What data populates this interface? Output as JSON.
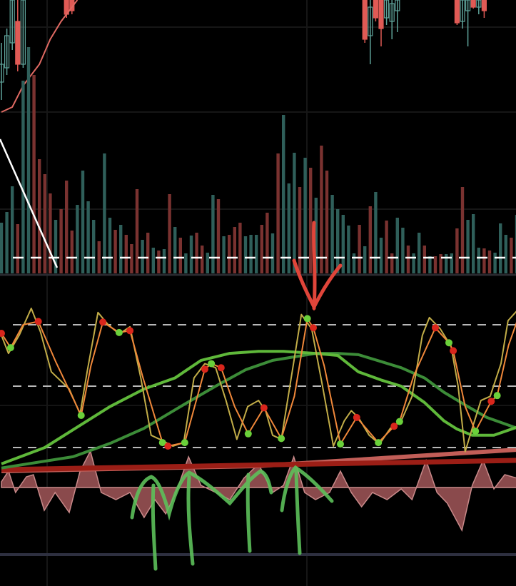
{
  "chart_data": [
    {
      "type": "candlestick",
      "pane": "price",
      "colors": {
        "up": "#5fa39a",
        "down": "#e05a55",
        "ma": "#e06a63"
      },
      "candles": [
        [
          0,
          85,
          110,
          140,
          60,
          "up"
        ],
        [
          1,
          105,
          150,
          160,
          95,
          "up"
        ],
        [
          2,
          140,
          200,
          200,
          130,
          "up"
        ],
        [
          3,
          170,
          110,
          200,
          100,
          "down"
        ],
        [
          4,
          110,
          200,
          200,
          105,
          "up"
        ],
        [
          12,
          200,
          180,
          200,
          175,
          "down"
        ],
        [
          13,
          200,
          185,
          200,
          180,
          "down"
        ],
        [
          67,
          200,
          145,
          200,
          140,
          "down"
        ],
        [
          68,
          150,
          190,
          200,
          110,
          "up"
        ],
        [
          69,
          200,
          175,
          200,
          170,
          "down"
        ],
        [
          70,
          200,
          160,
          200,
          135,
          "down"
        ],
        [
          71,
          175,
          200,
          200,
          165,
          "up"
        ],
        [
          72,
          170,
          195,
          200,
          145,
          "up"
        ],
        [
          73,
          185,
          200,
          200,
          155,
          "up"
        ],
        [
          84,
          200,
          168,
          200,
          165,
          "down"
        ],
        [
          85,
          170,
          200,
          200,
          160,
          "up"
        ],
        [
          86,
          185,
          200,
          200,
          135,
          "up"
        ],
        [
          87,
          200,
          190,
          200,
          188,
          "down"
        ],
        [
          88,
          190,
          200,
          200,
          180,
          "up"
        ],
        [
          89,
          200,
          185,
          200,
          175,
          "down"
        ]
      ],
      "ma": [
        [
          0,
          43
        ],
        [
          2,
          50
        ],
        [
          4,
          80
        ],
        [
          7,
          110
        ],
        [
          9,
          145
        ],
        [
          11,
          170
        ],
        [
          14,
          200
        ]
      ]
    },
    {
      "type": "bar",
      "pane": "volume",
      "colors": {
        "up": "#2f5f5a",
        "down": "#7a3230",
        "threshold": "#ffffff"
      },
      "values": [
        71,
        86,
        122,
        69,
        270,
        317,
        278,
        160,
        139,
        112,
        75,
        90,
        130,
        60,
        96,
        144,
        101,
        75,
        45,
        168,
        78,
        61,
        68,
        54,
        41,
        118,
        47,
        57,
        36,
        32,
        34,
        111,
        65,
        50,
        28,
        53,
        57,
        39,
        29,
        110,
        104,
        52,
        54,
        65,
        71,
        52,
        54,
        54,
        68,
        85,
        56,
        168,
        222,
        126,
        169,
        121,
        162,
        148,
        106,
        179,
        144,
        110,
        90,
        82,
        67,
        28,
        68,
        38,
        94,
        114,
        50,
        74,
        28,
        78,
        64,
        39,
        28,
        57,
        39,
        24,
        24,
        27,
        27,
        28,
        63,
        121,
        75,
        83,
        36,
        35,
        32,
        29,
        70,
        54,
        50,
        82
      ],
      "direction": [
        "up",
        "up",
        "up",
        "down",
        "up",
        "up",
        "down",
        "down",
        "down",
        "down",
        "up",
        "down",
        "down",
        "down",
        "up",
        "up",
        "up",
        "up",
        "down",
        "up",
        "up",
        "down",
        "up",
        "down",
        "down",
        "down",
        "up",
        "down",
        "up",
        "down",
        "up",
        "down",
        "up",
        "down",
        "up",
        "up",
        "down",
        "down",
        "up",
        "up",
        "down",
        "up",
        "down",
        "down",
        "down",
        "up",
        "up",
        "up",
        "down",
        "down",
        "up",
        "down",
        "up",
        "up",
        "up",
        "down",
        "up",
        "down",
        "up",
        "down",
        "down",
        "up",
        "up",
        "up",
        "up",
        "up",
        "down",
        "up",
        "down",
        "up",
        "up",
        "down",
        "down",
        "up",
        "up",
        "down",
        "up",
        "up",
        "down",
        "up",
        "down",
        "down",
        "up",
        "up",
        "down",
        "down",
        "up",
        "up",
        "up",
        "down",
        "down",
        "up",
        "up",
        "up",
        "down",
        "up"
      ],
      "threshold": 22
    },
    {
      "type": "line",
      "pane": "stochastic",
      "ylim": [
        0,
        100
      ],
      "levels": [
        80,
        50,
        20
      ],
      "colors": {
        "k": "#c2ad48",
        "d": "#f0883a",
        "ma_fast": "#5fb83a",
        "ma_slow": "#3c8c38",
        "dot_up": "#6ad03a",
        "dot_down": "#d9261c"
      },
      "k": [
        [
          0,
          74.8
        ],
        [
          1.3,
          66
        ],
        [
          3.3,
          75
        ],
        [
          5.5,
          88
        ],
        [
          7.2,
          76.5
        ],
        [
          9.2,
          57
        ],
        [
          12.5,
          48.6
        ],
        [
          14.5,
          36.4
        ],
        [
          15.8,
          57
        ],
        [
          17.8,
          86
        ],
        [
          19.7,
          80
        ],
        [
          21.7,
          75.5
        ],
        [
          23.7,
          79
        ],
        [
          25.7,
          54
        ],
        [
          27.6,
          26
        ],
        [
          29.6,
          23.5
        ],
        [
          31.6,
          20.7
        ],
        [
          33.6,
          22.4
        ],
        [
          35.5,
          54
        ],
        [
          37.5,
          61
        ],
        [
          39.5,
          59
        ],
        [
          41.4,
          43
        ],
        [
          43.4,
          24
        ],
        [
          45.4,
          40
        ],
        [
          47.4,
          43
        ],
        [
          48.7,
          38
        ],
        [
          50,
          26
        ],
        [
          51.6,
          24
        ],
        [
          53.3,
          52
        ],
        [
          55.3,
          85
        ],
        [
          57.2,
          78
        ],
        [
          59.2,
          50
        ],
        [
          61.2,
          20.7
        ],
        [
          63.2,
          33
        ],
        [
          64.5,
          38
        ],
        [
          65.8,
          34.7
        ],
        [
          67.8,
          26
        ],
        [
          69.7,
          21.7
        ],
        [
          71.7,
          29.4
        ],
        [
          73.7,
          33
        ],
        [
          75.7,
          45
        ],
        [
          77.6,
          74.8
        ],
        [
          78.9,
          83.5
        ],
        [
          80.9,
          78
        ],
        [
          82.9,
          69.5
        ],
        [
          84.2,
          50
        ],
        [
          85.5,
          18
        ],
        [
          86.8,
          29.4
        ],
        [
          88.4,
          43
        ],
        [
          90.1,
          45
        ],
        [
          92.1,
          61
        ],
        [
          93.4,
          82
        ],
        [
          95.1,
          87
        ]
      ],
      "d": [
        [
          0,
          75.8,
          "down"
        ],
        [
          1.7,
          68.8,
          "up"
        ],
        [
          4,
          80
        ],
        [
          6.8,
          81.6,
          "down"
        ],
        [
          10,
          62
        ],
        [
          14.7,
          35.7,
          "up"
        ],
        [
          16.5,
          60
        ],
        [
          18.7,
          81.3,
          "down"
        ],
        [
          21.7,
          76.2,
          "up"
        ],
        [
          23.7,
          77.1,
          "down"
        ],
        [
          26,
          55
        ],
        [
          29.7,
          22.4,
          "up"
        ],
        [
          30.7,
          20.7,
          "down"
        ],
        [
          33.8,
          22.4,
          "up"
        ],
        [
          37.5,
          58.3,
          "down"
        ],
        [
          38.7,
          61,
          "up"
        ],
        [
          40.5,
          59,
          "down"
        ],
        [
          43,
          40
        ],
        [
          45.5,
          26.7,
          "up"
        ],
        [
          48.4,
          39.4,
          "down"
        ],
        [
          51.6,
          24.4,
          "up"
        ],
        [
          54,
          45
        ],
        [
          56.4,
          83,
          "up"
        ],
        [
          57.5,
          78.5,
          "down"
        ],
        [
          59.5,
          60
        ],
        [
          62.5,
          21.7,
          "up"
        ],
        [
          65.5,
          34.7,
          "down"
        ],
        [
          69.5,
          22.4,
          "up"
        ],
        [
          72.4,
          30.4,
          "down"
        ],
        [
          73.4,
          32.7,
          "up"
        ],
        [
          76,
          55
        ],
        [
          80,
          78.5,
          "down"
        ],
        [
          82.5,
          71.2,
          "up"
        ],
        [
          83.3,
          67.3,
          "down"
        ],
        [
          85.5,
          40
        ],
        [
          87.4,
          28,
          "up"
        ],
        [
          90.3,
          42.6,
          "down"
        ],
        [
          91.4,
          45.4,
          "up"
        ],
        [
          93.5,
          70
        ],
        [
          95.1,
          82
        ]
      ],
      "ma_fast": [
        [
          0,
          12
        ],
        [
          8,
          20
        ],
        [
          14,
          30
        ],
        [
          20,
          40
        ],
        [
          26.3,
          48.6
        ],
        [
          32,
          54
        ],
        [
          36.8,
          62.6
        ],
        [
          42,
          66
        ],
        [
          47.4,
          67
        ],
        [
          52,
          67
        ],
        [
          57.9,
          66
        ],
        [
          62,
          65
        ],
        [
          65.8,
          57
        ],
        [
          70,
          53
        ],
        [
          73.7,
          50
        ],
        [
          78,
          42
        ],
        [
          81.6,
          33
        ],
        [
          84,
          29
        ],
        [
          86.8,
          26
        ],
        [
          90.8,
          26
        ],
        [
          95.1,
          30
        ]
      ],
      "ma_slow": [
        [
          0,
          10
        ],
        [
          13.2,
          15.5
        ],
        [
          20,
          22
        ],
        [
          26.3,
          29.4
        ],
        [
          33,
          40
        ],
        [
          39.5,
          50
        ],
        [
          45,
          58
        ],
        [
          50,
          62.6
        ],
        [
          57.9,
          66
        ],
        [
          62,
          66
        ],
        [
          65.8,
          65.4
        ],
        [
          70,
          62
        ],
        [
          73.7,
          59
        ],
        [
          78,
          54
        ],
        [
          81.6,
          47
        ],
        [
          86,
          40
        ],
        [
          89.5,
          34.7
        ],
        [
          95.1,
          29.4
        ]
      ]
    },
    {
      "type": "area",
      "pane": "lower-oscillator",
      "colors": {
        "fill": "#8a4a4c",
        "stroke": "#c98a8a",
        "ma_1": "#9b1e16",
        "ma_2": "#c25e58"
      },
      "values": [
        [
          0,
          8
        ],
        [
          1.3,
          23
        ],
        [
          2.6,
          -7
        ],
        [
          4.6,
          15
        ],
        [
          5.9,
          18
        ],
        [
          7.9,
          -32
        ],
        [
          9.9,
          -7
        ],
        [
          12.5,
          -35
        ],
        [
          14.5,
          23
        ],
        [
          16.4,
          51
        ],
        [
          18.4,
          -7
        ],
        [
          21.1,
          -17
        ],
        [
          23.7,
          -7
        ],
        [
          26.3,
          -42
        ],
        [
          28.3,
          -17
        ],
        [
          30.3,
          -37
        ],
        [
          32.2,
          -7
        ],
        [
          34.5,
          43
        ],
        [
          36.8,
          3
        ],
        [
          39.5,
          -7
        ],
        [
          42.1,
          -17
        ],
        [
          44.7,
          13
        ],
        [
          47.4,
          33
        ],
        [
          50,
          -7
        ],
        [
          52,
          3
        ],
        [
          53.9,
          43
        ],
        [
          55.9,
          -7
        ],
        [
          57.9,
          -17
        ],
        [
          60.5,
          -7
        ],
        [
          62.5,
          23
        ],
        [
          64.5,
          -7
        ],
        [
          66.4,
          -27
        ],
        [
          68.4,
          -7
        ],
        [
          71.1,
          -17
        ],
        [
          73.7,
          -2
        ],
        [
          75.7,
          -17
        ],
        [
          78.3,
          38
        ],
        [
          80.3,
          -7
        ],
        [
          82.2,
          -22
        ],
        [
          84.9,
          -60
        ],
        [
          86.8,
          3
        ],
        [
          88.8,
          38
        ],
        [
          90.8,
          -2
        ],
        [
          92.8,
          18
        ],
        [
          95.1,
          13
        ]
      ],
      "ma_1": [
        [
          0,
          25
        ],
        [
          95.1,
          38
        ]
      ],
      "ma_2": [
        [
          0,
          23
        ],
        [
          47,
          30
        ],
        [
          95.1,
          53
        ]
      ]
    }
  ]
}
